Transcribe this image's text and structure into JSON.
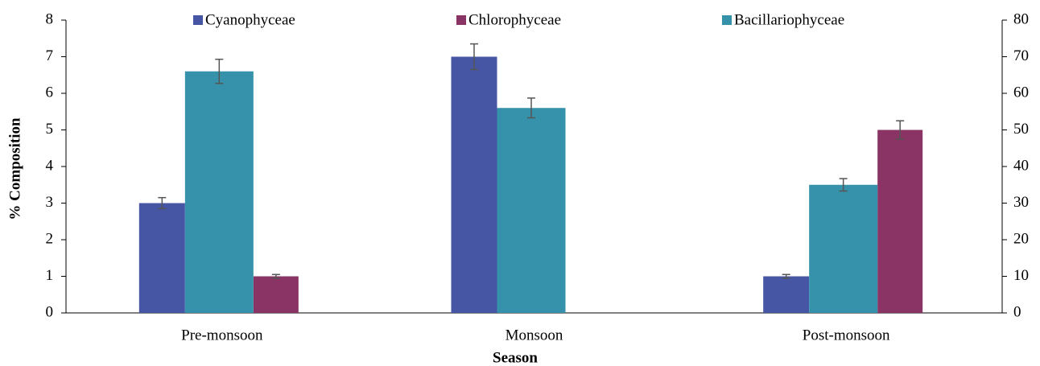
{
  "chart_data": {
    "type": "bar",
    "x_label": "Season",
    "y_label": "% Composition",
    "categories": [
      "Pre-monsoon",
      "Monsoon",
      "Post-monsoon"
    ],
    "series": [
      {
        "name": "Cyanophyceae",
        "color": "#4656a4",
        "values": [
          3,
          7,
          1
        ],
        "errors": [
          0.15,
          0.35,
          0.05
        ]
      },
      {
        "name": "Chlorophyceae",
        "color": "#893464",
        "values": [
          1,
          null,
          5
        ],
        "errors": [
          0.05,
          null,
          0.25
        ]
      },
      {
        "name": "Bacillariophyceae",
        "color": "#3592aa",
        "axis": "y2",
        "values": [
          66,
          56,
          35
        ],
        "errors": [
          3.3,
          2.7,
          1.7
        ]
      }
    ],
    "ylim": [
      0,
      8
    ],
    "yticks": [
      0,
      1,
      2,
      3,
      4,
      5,
      6,
      7,
      8
    ],
    "y2lim": [
      0,
      80
    ],
    "y2ticks": [
      0,
      10,
      20,
      30,
      40,
      50,
      60,
      70,
      80
    ],
    "legend": "top"
  }
}
